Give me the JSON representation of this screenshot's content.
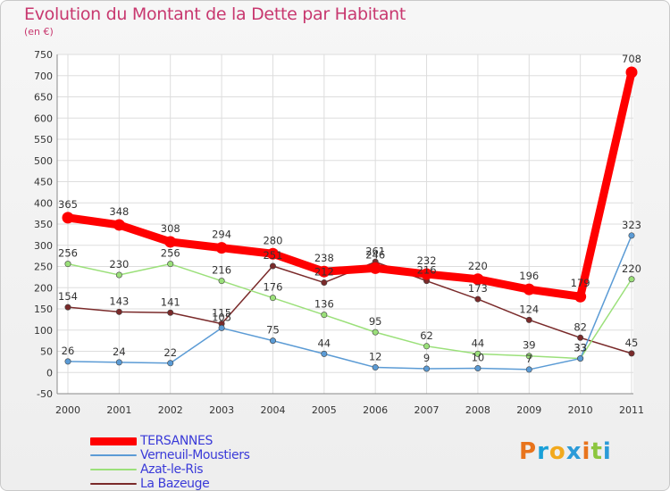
{
  "title": "Evolution du Montant de la Dette par Habitant",
  "unit_label": "(en €)",
  "logo": {
    "text": "Proxiti",
    "colors": [
      "#e8741c",
      "#1aa0d8",
      "#f2a91d",
      "#2c9bd8",
      "#e8741c",
      "#8cc63f",
      "#2c9bd8"
    ]
  },
  "chart_data": {
    "type": "line",
    "title": "Evolution du Montant de la Dette par Habitant",
    "ylabel": "(en €)",
    "xlabel": "",
    "x": [
      "2000",
      "2001",
      "2002",
      "2003",
      "2004",
      "2005",
      "2006",
      "2007",
      "2008",
      "2009",
      "2010",
      "2011"
    ],
    "ylim": [
      -50,
      750
    ],
    "yticks": [
      -50,
      0,
      50,
      100,
      150,
      200,
      250,
      300,
      350,
      400,
      450,
      500,
      550,
      600,
      650,
      700,
      750
    ],
    "grid": true,
    "legend_position": "bottom-left",
    "series": [
      {
        "name": "TERSANNES",
        "color": "#ff0000",
        "values": [
          365,
          348,
          308,
          294,
          280,
          238,
          246,
          232,
          220,
          196,
          179,
          708
        ],
        "labels": [
          "365",
          "348",
          "308",
          "294",
          "280",
          "238",
          "246",
          "232",
          "220",
          "196",
          "179",
          "708"
        ]
      },
      {
        "name": "Verneuil-Moustiers",
        "color": "#5b9bd5",
        "values": [
          26,
          24,
          22,
          105,
          75,
          44,
          12,
          9,
          10,
          7,
          33,
          323
        ],
        "labels": [
          "26",
          "24",
          "22",
          "105",
          "75",
          "44",
          "12",
          "9",
          "10",
          "7",
          "33",
          "323"
        ]
      },
      {
        "name": "Azat-le-Ris",
        "color": "#9be07a",
        "values": [
          256,
          230,
          256,
          216,
          176,
          136,
          95,
          62,
          44,
          39,
          33,
          220
        ],
        "labels": [
          "256",
          "230",
          "256",
          "216",
          "176",
          "136",
          "95",
          "62",
          "44",
          "39",
          "33",
          "220"
        ]
      },
      {
        "name": "La Bazeuge",
        "color": "#7a2a2a",
        "values": [
          154,
          143,
          141,
          115,
          251,
          212,
          261,
          216,
          173,
          124,
          82,
          45
        ],
        "labels": [
          "154",
          "143",
          "141",
          "115",
          "251",
          "212",
          "261",
          "216",
          "173",
          "124",
          "82",
          "45"
        ]
      }
    ]
  }
}
